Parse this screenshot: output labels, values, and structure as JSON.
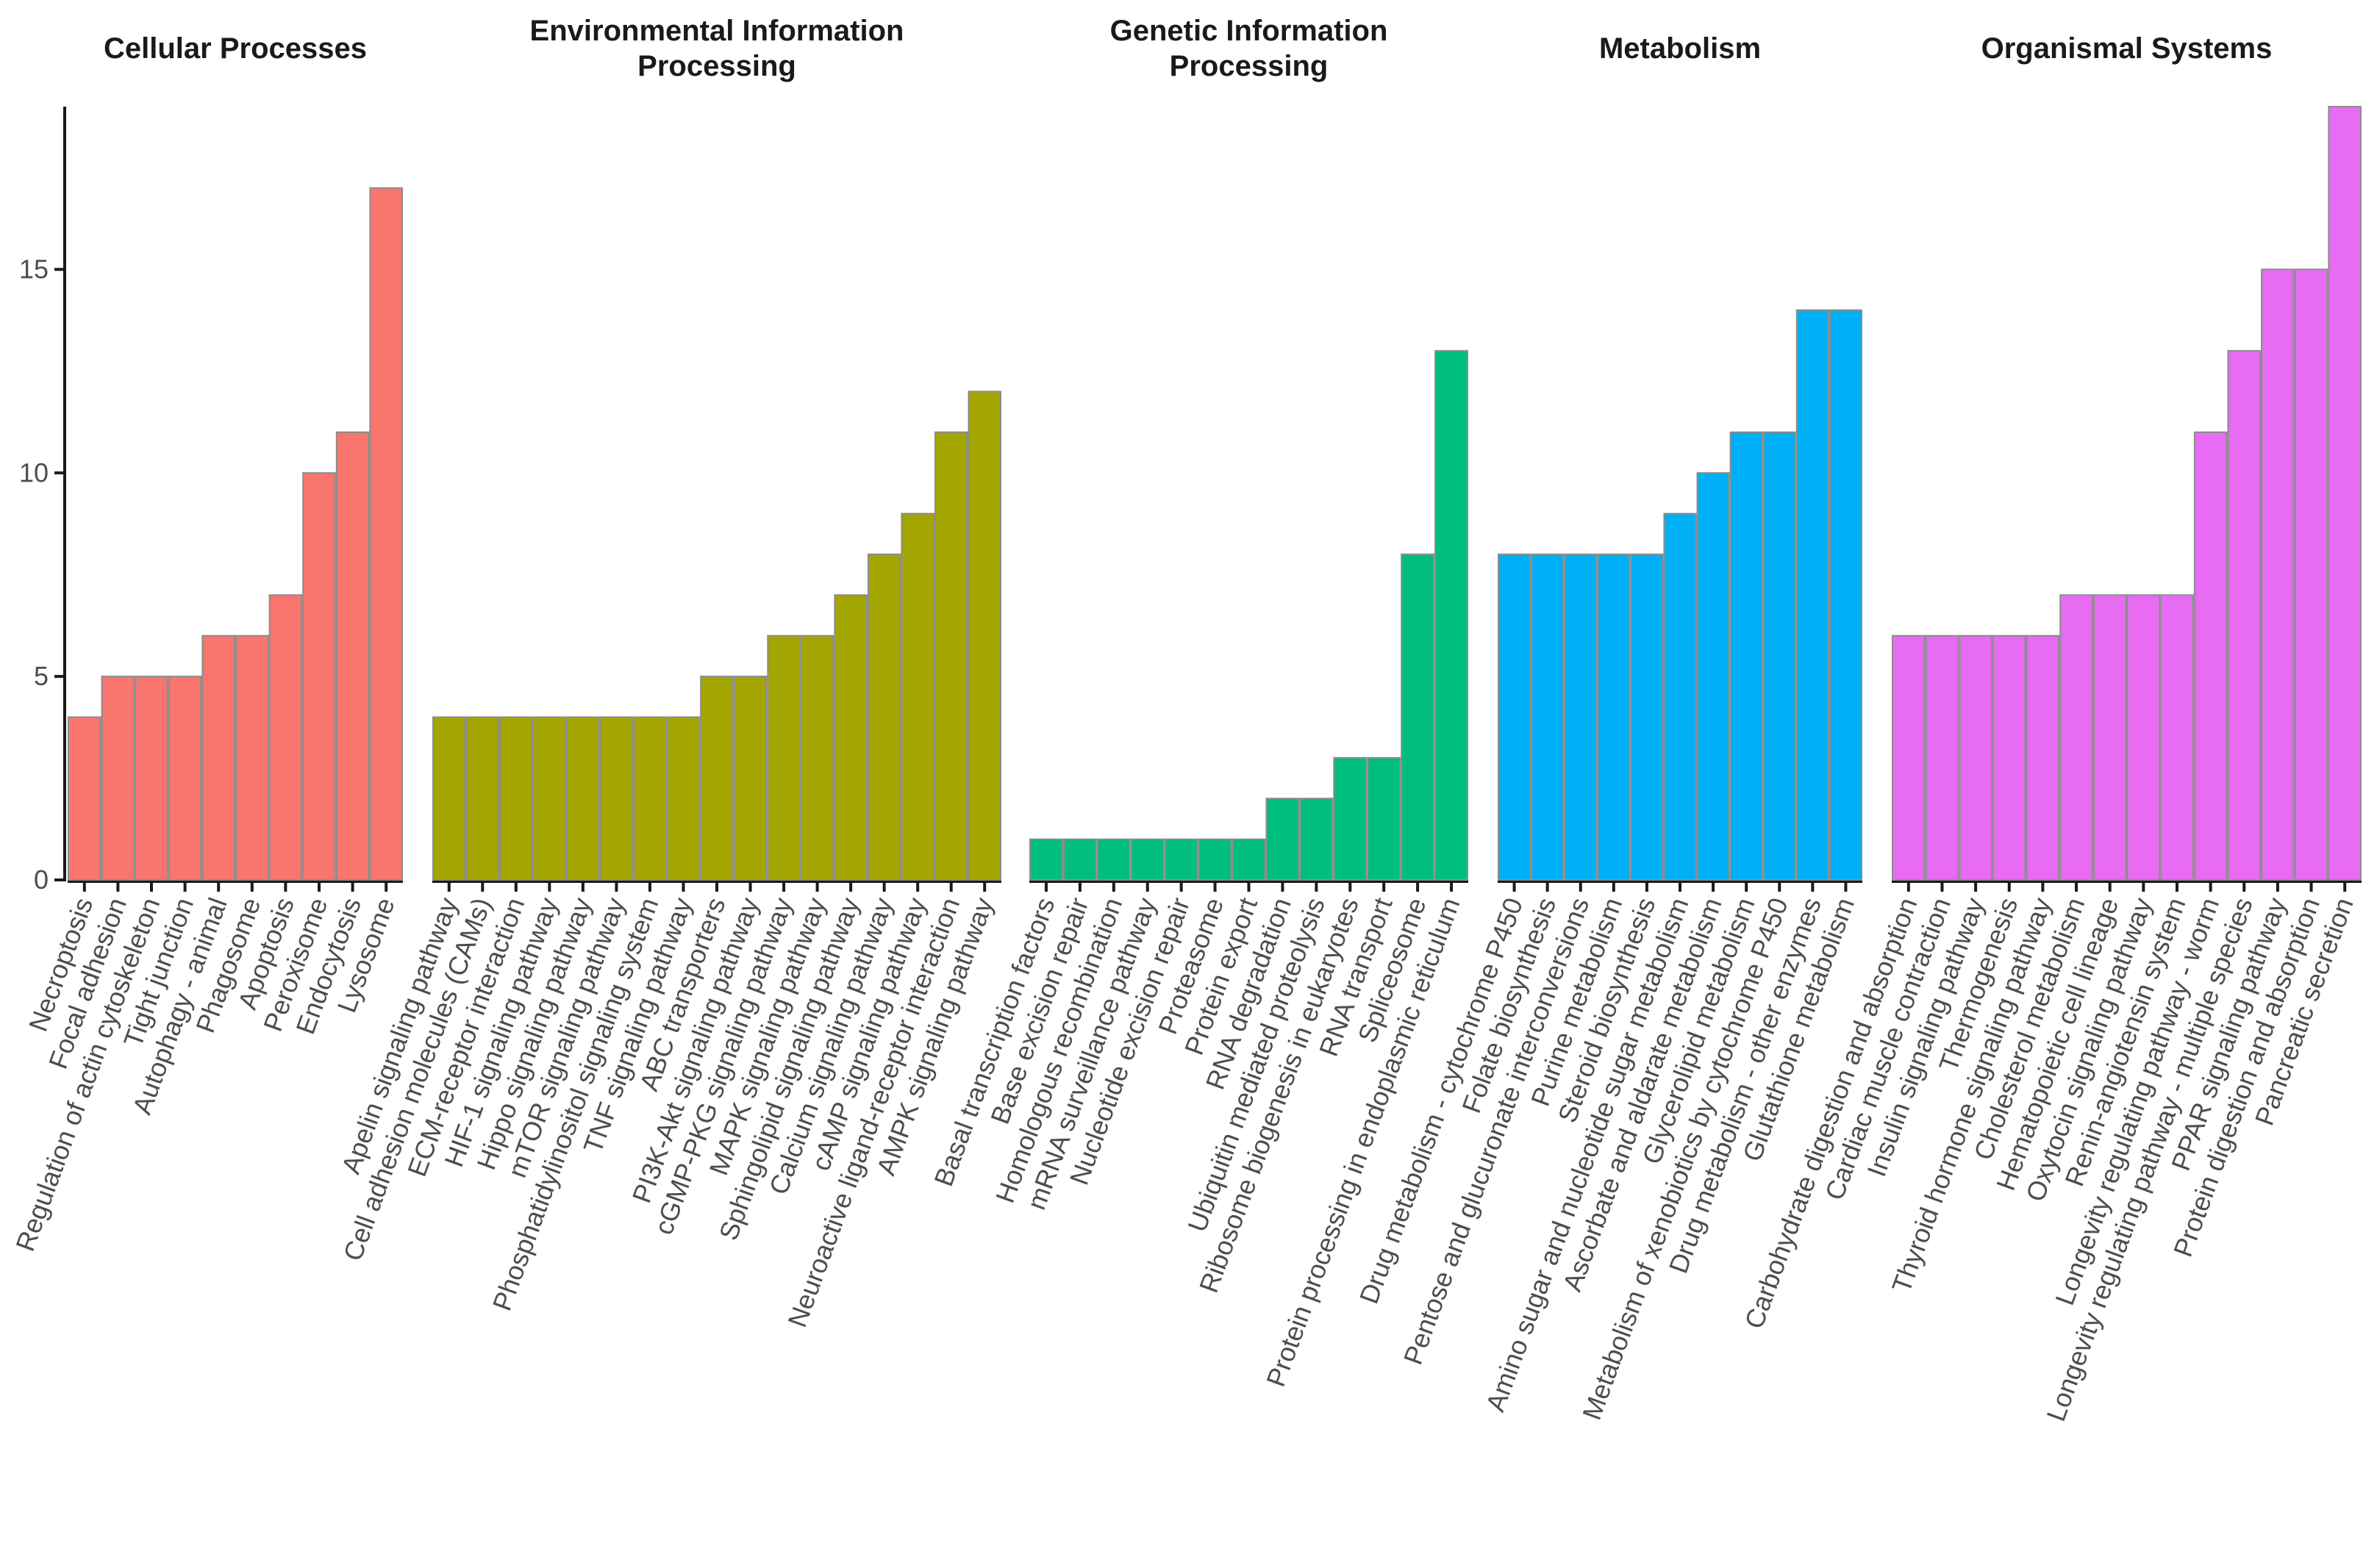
{
  "chart_data": {
    "type": "bar",
    "title": "",
    "xlabel": "",
    "ylabel": "",
    "ylim": [
      0,
      19
    ],
    "yticks": [
      0,
      5,
      10,
      15
    ],
    "facets": [
      {
        "name": "Cellular Processes",
        "color": "#F8766D",
        "categories": [
          "Necroptosis",
          "Focal adhesion",
          "Regulation of actin cytoskeleton",
          "Tight junction",
          "Autophagy - animal",
          "Phagosome",
          "Apoptosis",
          "Peroxisome",
          "Endocytosis",
          "Lysosome"
        ],
        "values": [
          4,
          5,
          5,
          5,
          6,
          6,
          7,
          10,
          11,
          17
        ]
      },
      {
        "name": "Environmental Information Processing",
        "title_lines": [
          "Environmental Information",
          "Processing"
        ],
        "color": "#A3A500",
        "categories": [
          "Apelin signaling pathway",
          "Cell adhesion molecules (CAMs)",
          "ECM-receptor interaction",
          "HIF-1 signaling pathway",
          "Hippo signaling pathway",
          "mTOR signaling pathway",
          "Phosphatidylinositol signaling system",
          "TNF signaling pathway",
          "ABC transporters",
          "PI3K-Akt signaling pathway",
          "cGMP-PKG signaling pathway",
          "MAPK signaling pathway",
          "Sphingolipid signaling pathway",
          "Calcium signaling pathway",
          "cAMP signaling pathway",
          "Neuroactive ligand-receptor interaction",
          "AMPK signaling pathway"
        ],
        "values": [
          4,
          4,
          4,
          4,
          4,
          4,
          4,
          4,
          5,
          5,
          6,
          6,
          7,
          8,
          9,
          11,
          12
        ]
      },
      {
        "name": "Genetic Information Processing",
        "title_lines": [
          "Genetic Information",
          "Processing"
        ],
        "color": "#00BF7D",
        "categories": [
          "Basal transcription factors",
          "Base excision repair",
          "Homologous recombination",
          "mRNA surveillance pathway",
          "Nucleotide excision repair",
          "Proteasome",
          "Protein export",
          "RNA degradation",
          "Ubiquitin mediated proteolysis",
          "Ribosome biogenesis in eukaryotes",
          "RNA transport",
          "Spliceosome",
          "Protein processing in endoplasmic reticulum"
        ],
        "values": [
          1,
          1,
          1,
          1,
          1,
          1,
          1,
          2,
          2,
          3,
          3,
          8,
          13
        ]
      },
      {
        "name": "Metabolism",
        "color": "#00B0F6",
        "categories": [
          "Drug metabolism - cytochrome P450",
          "Folate biosynthesis",
          "Pentose and glucuronate interconversions",
          "Purine metabolism",
          "Steroid biosynthesis",
          "Amino sugar and nucleotide sugar metabolism",
          "Ascorbate and aldarate metabolism",
          "Glycerolipid metabolism",
          "Metabolism of xenobiotics by cytochrome P450",
          "Drug metabolism - other enzymes",
          "Glutathione metabolism"
        ],
        "values": [
          8,
          8,
          8,
          8,
          8,
          9,
          10,
          11,
          11,
          14,
          14
        ]
      },
      {
        "name": "Organismal Systems",
        "color": "#E76BF3",
        "categories": [
          "Carbohydrate digestion and absorption",
          "Cardiac muscle contraction",
          "Insulin signaling pathway",
          "Thermogenesis",
          "Thyroid hormone signaling pathway",
          "Cholesterol metabolism",
          "Hematopoietic cell lineage",
          "Oxytocin signaling pathway",
          "Renin-angiotensin system",
          "Longevity regulating pathway - worm",
          "Longevity regulating pathway - multiple species",
          "PPAR signaling pathway",
          "Protein digestion and absorption",
          "Pancreatic secretion"
        ],
        "values": [
          6,
          6,
          6,
          6,
          6,
          7,
          7,
          7,
          7,
          11,
          13,
          15,
          15,
          19
        ]
      }
    ]
  }
}
